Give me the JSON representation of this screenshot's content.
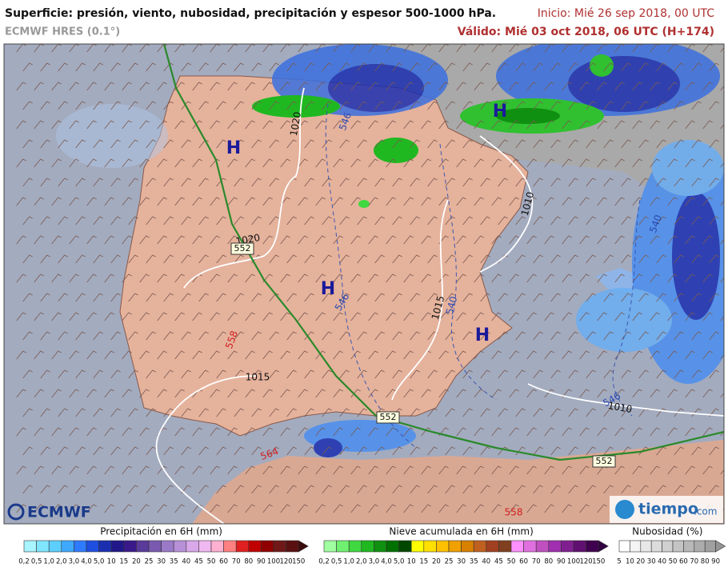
{
  "header": {
    "title": "Superficie: presión, viento, nubosidad, precipitación y espesor 500-1000 hPa.",
    "model": "ECMWF HRES (0.1°)",
    "init": "Inicio: Mié 26 sep 2018, 00 UTC",
    "valid": "Válido: Mié 03 oct 2018, 06 UTC (H+174)"
  },
  "map": {
    "pressure_centers": [
      "H",
      "H",
      "H",
      "H"
    ],
    "isobar_labels": [
      "1020",
      "1020",
      "1015",
      "1015",
      "1010",
      "1010"
    ],
    "thickness_labels_blue": [
      "546",
      "546",
      "540",
      "540",
      "546"
    ],
    "thickness_labels_red": [
      "558",
      "564",
      "558"
    ],
    "boxed_labels": [
      "552",
      "552",
      "552"
    ]
  },
  "logos": {
    "left": "ECMWF",
    "right": "tiempo",
    "right_suffix": ".com"
  },
  "legends": [
    {
      "title": "Precipitación en 6H (mm)",
      "ticks": [
        "0,2",
        "0,5",
        "1,0",
        "2,0",
        "3,0",
        "4,0",
        "5,0",
        "10",
        "15",
        "20",
        "25",
        "30",
        "35",
        "40",
        "45",
        "50",
        "60",
        "70",
        "80",
        "90",
        "100",
        "120",
        "150"
      ]
    },
    {
      "title": "Nieve acumulada en 6H (mm)",
      "ticks": [
        "0,2",
        "0,5",
        "1,0",
        "2,0",
        "3,0",
        "4,0",
        "5,0",
        "10",
        "15",
        "20",
        "25",
        "30",
        "35",
        "40",
        "45",
        "50",
        "60",
        "70",
        "80",
        "90",
        "100",
        "120",
        "150"
      ]
    },
    {
      "title": "Nubosidad (%)",
      "ticks": [
        "5",
        "10",
        "20",
        "30",
        "40",
        "50",
        "60",
        "70",
        "80",
        "90"
      ]
    }
  ]
}
